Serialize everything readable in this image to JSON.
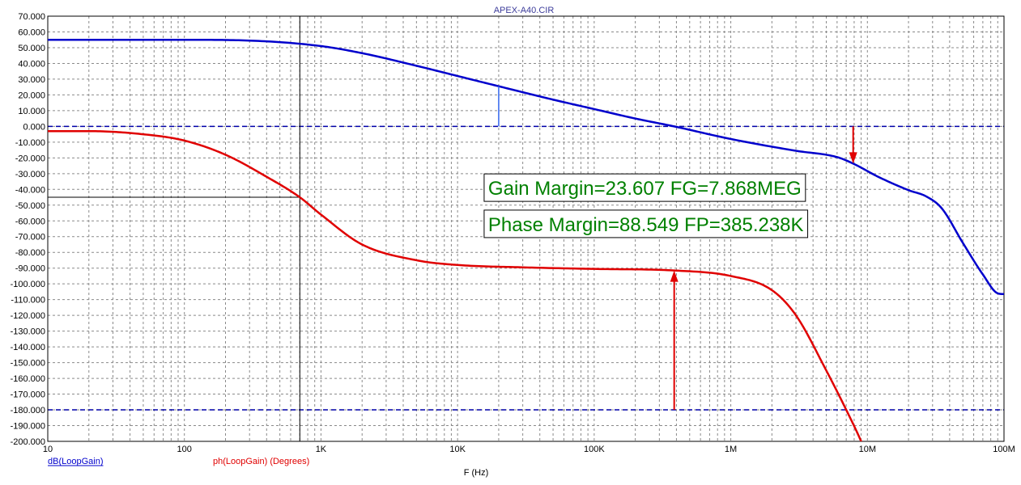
{
  "chart_data": {
    "type": "line",
    "title": "APEX-A40.CIR",
    "xlabel": "F (Hz)",
    "x_scale": "log",
    "xlim": [
      10,
      100000000
    ],
    "ylim": [
      -200,
      70
    ],
    "grid": true,
    "y_ticks": [
      "70.000",
      "60.000",
      "50.000",
      "40.000",
      "30.000",
      "20.000",
      "10.000",
      "0.000",
      "-10.000",
      "-20.000",
      "-30.000",
      "-40.000",
      "-50.000",
      "-60.000",
      "-70.000",
      "-80.000",
      "-90.000",
      "-100.000",
      "-110.000",
      "-120.000",
      "-130.000",
      "-140.000",
      "-150.000",
      "-160.000",
      "-170.000",
      "-180.000",
      "-190.000",
      "-200.000"
    ],
    "x_ticks": [
      {
        "value": 10,
        "label": "10"
      },
      {
        "value": 100,
        "label": "100"
      },
      {
        "value": 1000,
        "label": "1K"
      },
      {
        "value": 10000,
        "label": "10K"
      },
      {
        "value": 100000,
        "label": "100K"
      },
      {
        "value": 1000000,
        "label": "1M"
      },
      {
        "value": 10000000,
        "label": "10M"
      },
      {
        "value": 100000000,
        "label": "100M"
      }
    ],
    "series": [
      {
        "name": "dB(LoopGain)",
        "color": "#0000cc",
        "x": [
          10,
          100,
          300,
          1000,
          2000,
          5000,
          10000,
          20000,
          50000,
          100000,
          200000,
          385238,
          1000000,
          3000000,
          6000000,
          7868000,
          12000000,
          20000000,
          27000000,
          35000000,
          50000000,
          70000000,
          90000000,
          100000000
        ],
        "y": [
          55,
          55,
          54.5,
          51,
          46.5,
          38.5,
          32,
          25.5,
          17,
          11,
          5,
          0,
          -8,
          -15.5,
          -19.5,
          -23.6,
          -32,
          -40.5,
          -44.5,
          -52,
          -74,
          -94,
          -106,
          -106.5
        ]
      },
      {
        "name": "ph(LoopGain) (Degrees)",
        "color": "#e00000",
        "x": [
          10,
          20,
          50,
          100,
          200,
          400,
          700,
          1000,
          2000,
          5000,
          10000,
          30000,
          100000,
          385238,
          1000000,
          2000000,
          3000000,
          5000000,
          7000000,
          9000000,
          10000000
        ],
        "y": [
          -3,
          -3,
          -5,
          -9,
          -18,
          -32,
          -45,
          -56,
          -75,
          -85,
          -88,
          -89.5,
          -90.5,
          -91.5,
          -95,
          -104,
          -120,
          -155,
          -180,
          -200,
          -210
        ]
      }
    ],
    "reference_lines": [
      0,
      -180
    ],
    "cursor": {
      "x": 700,
      "y": -45
    },
    "markers": [
      {
        "type": "segment",
        "color": "#3366ee",
        "x": 20000,
        "y_from": 0,
        "y_to": 25.5
      },
      {
        "type": "arrow",
        "color": "#e00000",
        "x": 385238,
        "y_from": -180,
        "y_to": -91.5
      },
      {
        "type": "arrow",
        "color": "#e00000",
        "x": 7868000,
        "y_from": 0,
        "y_to": -23.6
      }
    ],
    "annotations": [
      {
        "text": "Gain Margin=23.607 FG=7.868MEG",
        "x": 20000,
        "y": -43.5
      },
      {
        "text": "Phase Margin=88.549 FP=385.238K",
        "x": 20000,
        "y": -66.5
      }
    ]
  }
}
